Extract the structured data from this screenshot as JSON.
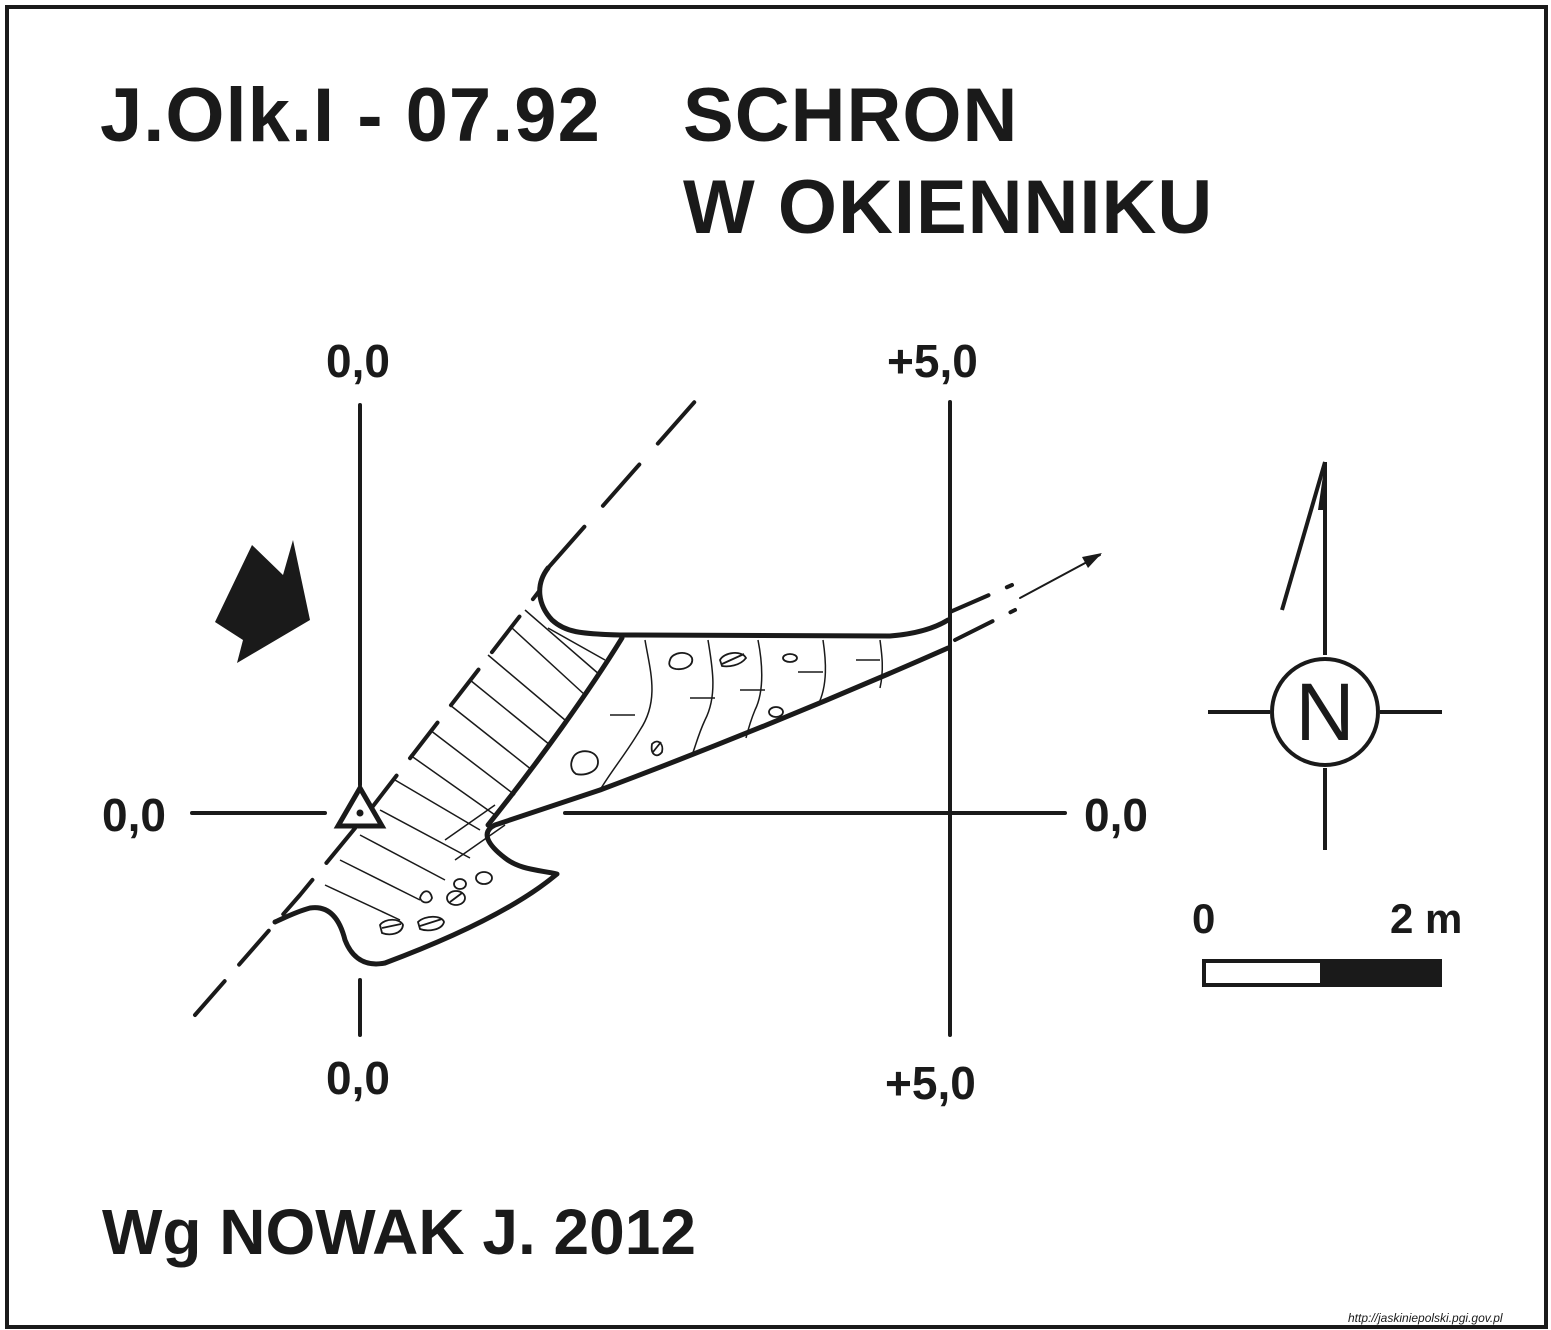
{
  "header": {
    "cave_id": "J.Olk.I - 07.92",
    "name_line1": "SCHRON",
    "name_line2": "W OKIENNIKU"
  },
  "grid_labels": {
    "top_left": "0,0",
    "top_right": "+5,0",
    "left": "0,0",
    "right": "0,0",
    "bottom_left": "0,0",
    "bottom_right": "+5,0"
  },
  "compass": {
    "label": "N",
    "icon": "north-arrow-icon"
  },
  "scale_bar": {
    "start_label": "0",
    "end_label": "2 m"
  },
  "author": "Wg NOWAK J. 2012",
  "source": "http://jaskiniepolski.pgi.gov.pl",
  "colors": {
    "ink": "#1a1a1a",
    "paper": "#ffffff"
  }
}
